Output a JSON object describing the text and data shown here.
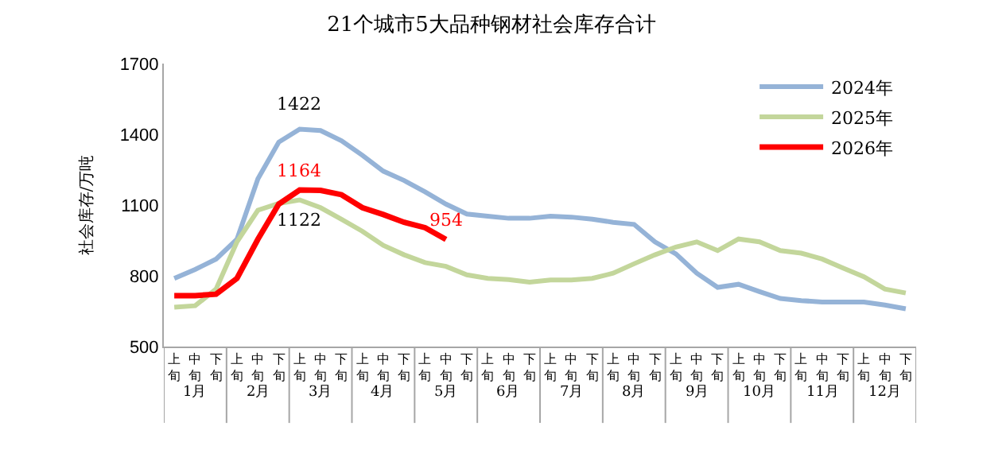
{
  "chart_data": {
    "type": "line",
    "title": "21个城市5大品种钢材社会库存合计",
    "ylabel": "社会库存/万吨",
    "categories": [
      "上旬",
      "中旬",
      "下旬",
      "上旬",
      "中旬",
      "下旬",
      "上旬",
      "中旬",
      "下旬",
      "上旬",
      "中旬",
      "下旬",
      "上旬",
      "中旬",
      "下旬",
      "上旬",
      "中旬",
      "下旬",
      "上旬",
      "中旬",
      "下旬",
      "上旬",
      "中旬",
      "下旬",
      "上旬",
      "中旬",
      "下旬",
      "上旬",
      "中旬",
      "下旬",
      "上旬",
      "中旬",
      "下旬",
      "上旬",
      "中旬",
      "下旬"
    ],
    "annotations": [
      "1月",
      "2月",
      "3月",
      "4月",
      "5月",
      "6月",
      "7月",
      "8月",
      "9月",
      "10月",
      "11月",
      "12月"
    ],
    "series": [
      {
        "name": "2024年",
        "color": "#95b3d7",
        "values": [
          789,
          827,
          871,
          955,
          1211,
          1367,
          1422,
          1416,
          1373,
          1311,
          1244,
          1204,
          1156,
          1104,
          1062,
          1053,
          1044,
          1044,
          1053,
          1049,
          1040,
          1027,
          1018,
          944,
          893,
          811,
          751,
          764,
          733,
          704,
          695,
          689,
          689,
          689,
          676,
          660
        ],
        "value_labels": [
          null,
          null,
          null,
          null,
          null,
          null,
          "1422",
          null,
          null,
          null,
          null,
          null,
          null,
          null,
          null,
          null,
          null,
          null,
          null,
          null,
          null,
          null,
          null,
          null,
          null,
          null,
          null,
          null,
          null,
          null,
          null,
          null,
          null,
          null,
          null,
          null
        ]
      },
      {
        "name": "2025年",
        "color": "#c3d69b",
        "values": [
          667,
          673,
          744,
          944,
          1078,
          1107,
          1122,
          1089,
          1040,
          989,
          929,
          889,
          856,
          840,
          804,
          789,
          784,
          773,
          782,
          782,
          789,
          811,
          851,
          889,
          922,
          944,
          907,
          956,
          944,
          907,
          896,
          871,
          833,
          796,
          744,
          727
        ],
        "value_labels": [
          null,
          null,
          null,
          null,
          null,
          null,
          "1122",
          null,
          null,
          null,
          null,
          null,
          null,
          null,
          null,
          null,
          null,
          null,
          null,
          null,
          null,
          null,
          null,
          null,
          null,
          null,
          null,
          null,
          null,
          null,
          null,
          null,
          null,
          null,
          null,
          null
        ]
      },
      {
        "name": "2026年",
        "color": "#ff0000",
        "values": [
          716,
          716,
          722,
          789,
          955,
          1104,
          1164,
          1162,
          1144,
          1089,
          1060,
          1027,
          1004,
          954,
          null,
          null,
          null,
          null,
          null,
          null,
          null,
          null,
          null,
          null,
          null,
          null,
          null,
          null,
          null,
          null,
          null,
          null,
          null,
          null,
          null,
          null
        ],
        "value_labels": [
          null,
          null,
          null,
          null,
          null,
          null,
          "1164",
          null,
          null,
          null,
          null,
          null,
          null,
          "954",
          null,
          null,
          null,
          null,
          null,
          null,
          null,
          null,
          null,
          null,
          null,
          null,
          null,
          null,
          null,
          null,
          null,
          null,
          null,
          null,
          null,
          null
        ]
      }
    ],
    "ylim": [
      500,
      1700
    ],
    "yticks": [
      500,
      800,
      1100,
      1400,
      1700
    ],
    "legend": "top right",
    "marker": "none",
    "line_style": "solid"
  }
}
